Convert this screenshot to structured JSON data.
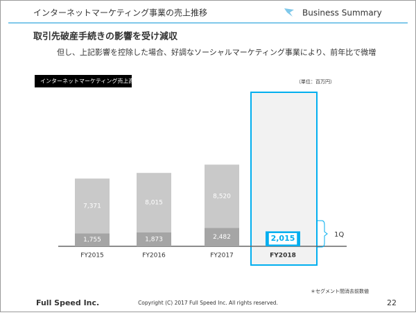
{
  "header": {
    "title": "インターネットマーケティング事業の売上推移",
    "section": "Business Summary"
  },
  "headline": "取引先破産手続きの影響を受け減収",
  "subheadline": "但し、上記影響を控除した場合、好調なソーシャルマーケティング事業により、前年比で微増",
  "chart_data": {
    "type": "bar",
    "stacked": true,
    "title": "インターネットマーケティング売上高",
    "unit": "（単位：百万円）",
    "categories": [
      "FY2015",
      "FY2016",
      "FY2017",
      "FY2018"
    ],
    "series": [
      {
        "name": "1Q",
        "colors": [
          "#a5a5a5",
          "#a5a5a5",
          "#a5a5a5",
          "#00aeef"
        ],
        "values": [
          1755,
          1873,
          2482,
          2015
        ],
        "value_labels": [
          "1,755",
          "1,873",
          "2,482",
          "2,015"
        ]
      },
      {
        "colors": [
          "#c9c9c9",
          "#c9c9c9",
          "#c9c9c9",
          "#c9c9c9"
        ],
        "values": [
          7371,
          8015,
          8520,
          null
        ],
        "value_labels": [
          "7,371",
          "8,015",
          "8,520",
          null
        ]
      }
    ],
    "note": "＊セグメント間消去前数値"
  },
  "footer": {
    "company": "Full Speed Inc.",
    "copyright": "Copyright (C) 2017 Full Speed Inc. All rights reserved.",
    "page": "22"
  }
}
